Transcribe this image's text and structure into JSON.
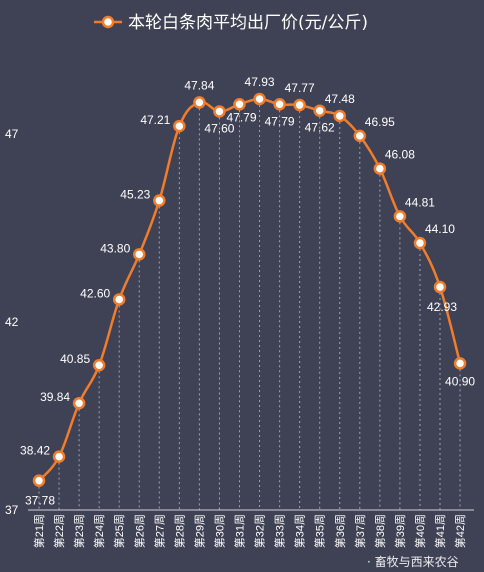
{
  "chart_data": {
    "type": "line",
    "title": "",
    "xlabel": "",
    "ylabel": "",
    "ylim": [
      37,
      49.5
    ],
    "yticks": [
      37,
      42,
      47
    ],
    "grid": {
      "vertical_dashed": true,
      "horizontal": false
    },
    "legend_position": "top",
    "categories": [
      "第21周",
      "第22周",
      "第23周",
      "第24周",
      "第25周",
      "第26周",
      "第27周",
      "第28周",
      "第29周",
      "第30周",
      "第31周",
      "第32周",
      "第33周",
      "第34周",
      "第35周",
      "第36周",
      "第37周",
      "第38周",
      "第39周",
      "第40周",
      "第41周",
      "第42周"
    ],
    "series": [
      {
        "name": "本轮白条肉平均出厂价(元/公斤)",
        "color": "#f07d2e",
        "values": [
          37.78,
          38.42,
          39.84,
          40.85,
          42.6,
          43.8,
          45.23,
          47.21,
          47.84,
          47.6,
          47.79,
          47.93,
          47.79,
          47.77,
          47.62,
          47.48,
          46.95,
          46.08,
          44.81,
          44.1,
          42.93,
          40.9
        ],
        "labels": [
          "37.78",
          "38.42",
          "39.84",
          "40.85",
          "42.60",
          "43.80",
          "45.23",
          "47.21",
          "47.84",
          "47.60",
          "47.79",
          "47.93",
          "47.79",
          "47.77",
          "47.62",
          "47.48",
          "46.95",
          "46.08",
          "44.81",
          "44.10",
          "42.93",
          "40.90"
        ]
      }
    ]
  },
  "watermark": "· 畜牧与西来农谷"
}
